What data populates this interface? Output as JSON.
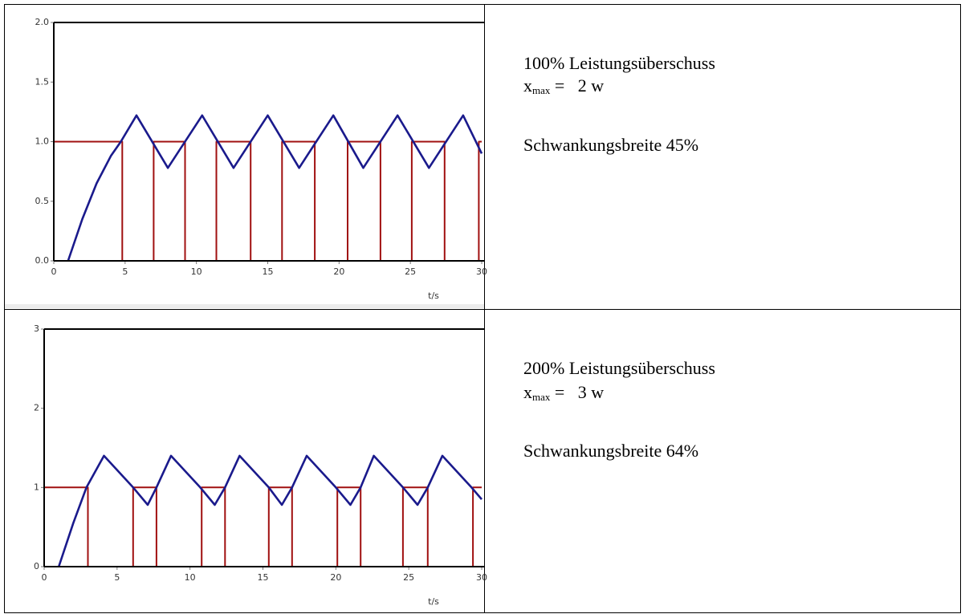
{
  "chart_data": [
    {
      "type": "line",
      "xlabel": "t/s",
      "xlim": [
        0,
        30
      ],
      "xticks": [
        0,
        5,
        10,
        15,
        20,
        25,
        30
      ],
      "ylim": [
        0,
        2
      ],
      "yticks": [
        {
          "value": 0,
          "label": "0.0"
        },
        0.5,
        {
          "value": 1,
          "label": "1.0"
        },
        1.5,
        {
          "value": 2,
          "label": "2.0"
        }
      ],
      "series": [
        {
          "color": "#a01010",
          "x": [
            0,
            4.8,
            4.8,
            7.0,
            7.0,
            9.2,
            9.2,
            11.4,
            11.4,
            13.8,
            13.8,
            16.0,
            16.0,
            18.3,
            18.3,
            20.6,
            20.6,
            22.9,
            22.9,
            25.1,
            25.1,
            27.4,
            27.4,
            29.8,
            29.8,
            30
          ],
          "values": [
            1,
            1,
            0,
            0,
            1,
            1,
            0,
            0,
            1,
            1,
            0,
            0,
            1,
            1,
            0,
            0,
            1,
            1,
            0,
            0,
            1,
            1,
            0,
            0,
            1,
            1
          ]
        },
        {
          "color": "#1a1a8c",
          "x": [
            1,
            2,
            3,
            4,
            4.7,
            5.8,
            8.0,
            10.4,
            12.6,
            15.0,
            17.2,
            19.6,
            21.7,
            24.1,
            26.3,
            28.7,
            30
          ],
          "values": [
            0,
            0.35,
            0.65,
            0.88,
            1.0,
            1.22,
            0.78,
            1.22,
            0.78,
            1.22,
            0.78,
            1.22,
            0.78,
            1.22,
            0.78,
            1.22,
            0.9
          ]
        }
      ]
    },
    {
      "type": "line",
      "xlabel": "t/s",
      "xlim": [
        0,
        30
      ],
      "xticks": [
        0,
        5,
        10,
        15,
        20,
        25,
        30
      ],
      "ylim": [
        0,
        3
      ],
      "yticks": [
        0,
        1,
        2,
        3
      ],
      "series": [
        {
          "color": "#a01010",
          "x": [
            0,
            3.0,
            3.0,
            6.1,
            6.1,
            7.7,
            7.7,
            10.8,
            10.8,
            12.4,
            12.4,
            15.4,
            15.4,
            17.0,
            17.0,
            20.1,
            20.1,
            21.7,
            21.7,
            24.6,
            24.6,
            26.3,
            26.3,
            29.4,
            29.4,
            30
          ],
          "values": [
            1,
            1,
            0,
            0,
            1,
            1,
            0,
            0,
            1,
            1,
            0,
            0,
            1,
            1,
            0,
            0,
            1,
            1,
            0,
            0,
            1,
            1,
            0,
            0,
            1,
            1
          ]
        },
        {
          "color": "#1a1a8c",
          "x": [
            1,
            2,
            2.9,
            4.1,
            6.1,
            7.1,
            7.7,
            8.7,
            10.7,
            11.7,
            12.4,
            13.4,
            15.4,
            16.3,
            17.0,
            18.0,
            20.0,
            21.0,
            21.7,
            22.6,
            24.6,
            25.6,
            26.3,
            27.3,
            29.3,
            30
          ],
          "values": [
            0,
            0.55,
            1.0,
            1.4,
            1.0,
            0.78,
            1.0,
            1.4,
            1.0,
            0.78,
            1.0,
            1.4,
            1.0,
            0.78,
            1.0,
            1.4,
            1.0,
            0.78,
            1.0,
            1.4,
            1.0,
            0.78,
            1.0,
            1.4,
            1.0,
            0.85
          ]
        }
      ]
    }
  ],
  "table": {
    "rows": [
      {
        "heading": "100% Leistungsüberschuss",
        "xmax": {
          "symbol": "x",
          "subscript": "max",
          "value": " =   2 w"
        },
        "note": "Schwankungsbreite 45%"
      },
      {
        "heading": "200% Leistungsüberschuss",
        "xmax": {
          "symbol": "x",
          "subscript": "max",
          "value": " =   3 w"
        },
        "note": "Schwankungsbreite 64%"
      }
    ]
  }
}
